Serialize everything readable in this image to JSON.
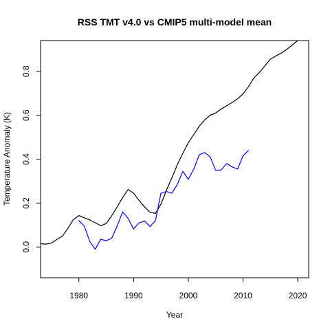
{
  "chart_data": {
    "type": "line",
    "title": "RSS TMT v4.0 vs CMIP5 multi-model mean",
    "xlabel": "Year",
    "ylabel": "Temperature Anomaly (K)",
    "xlim": [
      1973,
      2022
    ],
    "ylim": [
      -0.14,
      0.94
    ],
    "x_ticks": [
      1980,
      1990,
      2000,
      2010,
      2020
    ],
    "y_ticks": [
      0.0,
      0.2,
      0.4,
      0.6,
      0.8
    ],
    "x_tick_labels": [
      "1980",
      "1990",
      "2000",
      "2010",
      "2020"
    ],
    "y_tick_labels": [
      "0.0",
      "0.2",
      "0.4",
      "0.6",
      "0.8"
    ],
    "grid": false,
    "series": [
      {
        "color": "#000000",
        "x": [
          1973,
          1974,
          1975,
          1976,
          1977,
          1978,
          1979,
          1980,
          1981,
          1982,
          1983,
          1984,
          1985,
          1986,
          1987,
          1988,
          1989,
          1990,
          1991,
          1992,
          1993,
          1994,
          1995,
          1996,
          1997,
          1998,
          1999,
          2000,
          2001,
          2002,
          2003,
          2004,
          2005,
          2006,
          2007,
          2008,
          2009,
          2010,
          2011,
          2012,
          2013,
          2014,
          2015,
          2016,
          2017,
          2018,
          2019,
          2020
        ],
        "values": [
          0.015,
          0.013,
          0.018,
          0.035,
          0.05,
          0.085,
          0.125,
          0.143,
          0.133,
          0.123,
          0.11,
          0.097,
          0.107,
          0.142,
          0.183,
          0.225,
          0.262,
          0.245,
          0.212,
          0.183,
          0.158,
          0.153,
          0.195,
          0.258,
          0.315,
          0.375,
          0.427,
          0.475,
          0.512,
          0.55,
          0.579,
          0.6,
          0.61,
          0.628,
          0.643,
          0.658,
          0.675,
          0.697,
          0.73,
          0.77,
          0.795,
          0.825,
          0.855,
          0.87,
          0.883,
          0.9,
          0.92,
          0.94
        ]
      },
      {
        "color": "#0000ff",
        "x": [
          1980,
          1981,
          1982,
          1983,
          1984,
          1985,
          1986,
          1987,
          1988,
          1989,
          1990,
          1991,
          1992,
          1993,
          1994,
          1995,
          1996,
          1997,
          1998,
          1999,
          2000,
          2001,
          2002,
          2003,
          2004,
          2005,
          2006,
          2007,
          2008,
          2009,
          2010,
          2011,
          2012
        ],
        "values": [
          0.12,
          0.095,
          0.025,
          -0.01,
          0.035,
          0.028,
          0.04,
          0.095,
          0.16,
          0.13,
          0.082,
          0.11,
          0.118,
          0.093,
          0.12,
          0.245,
          0.253,
          0.245,
          0.285,
          0.345,
          0.308,
          0.355,
          0.42,
          0.43,
          0.41,
          0.35,
          0.35,
          0.38,
          0.365,
          0.355,
          0.415,
          0.44,
          null
        ]
      }
    ]
  }
}
